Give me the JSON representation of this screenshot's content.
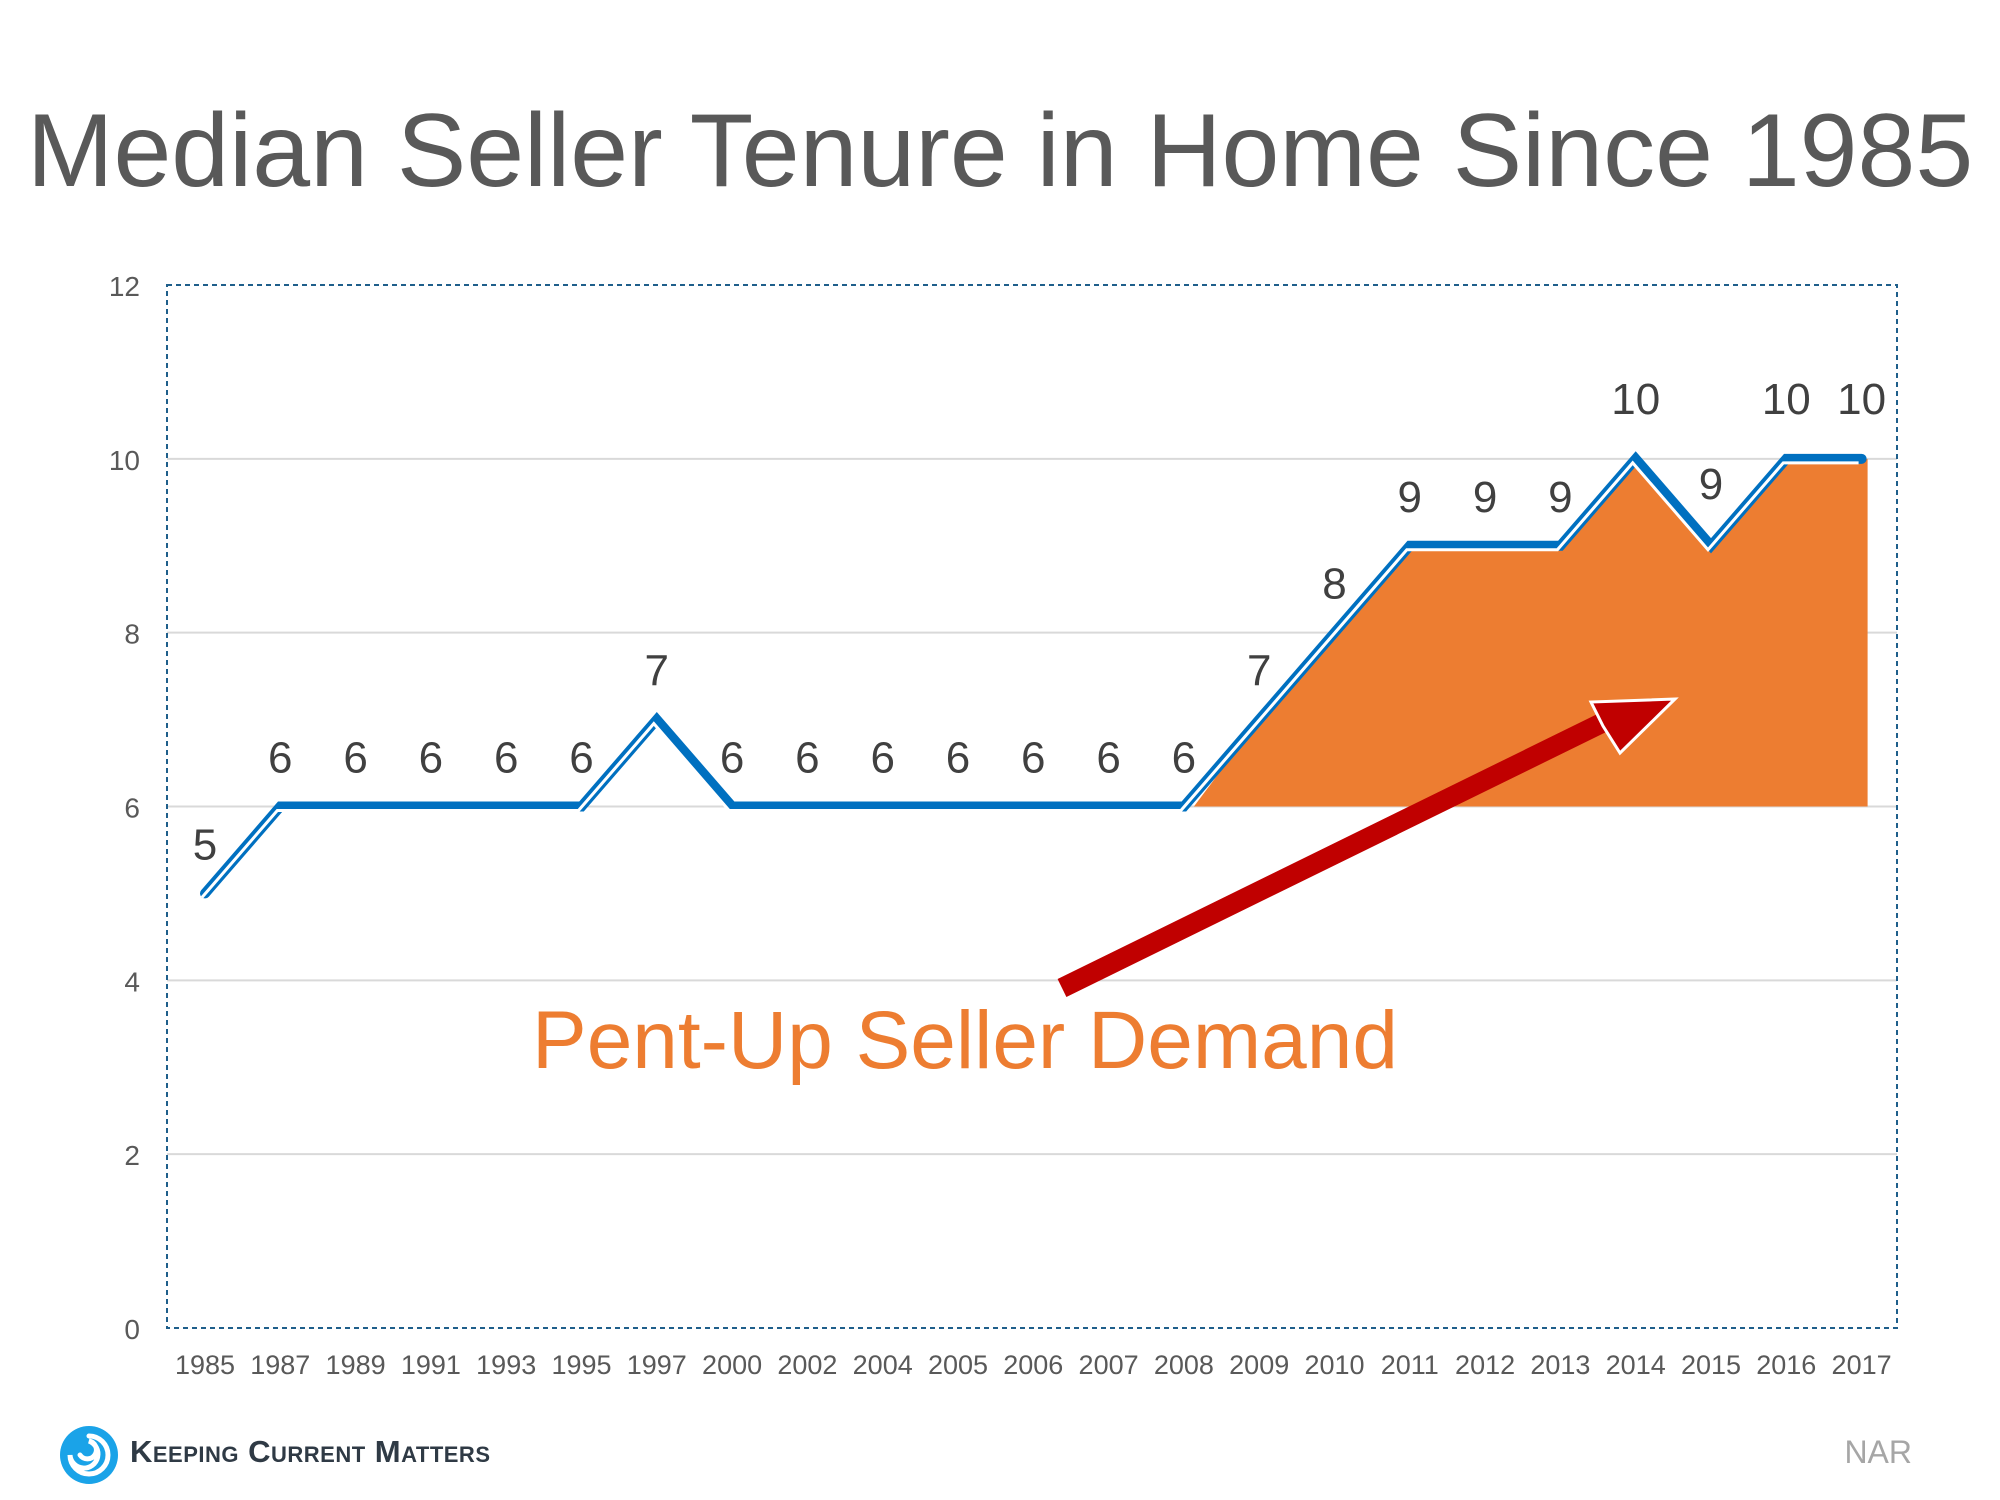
{
  "title": "Median Seller Tenure in Home Since 1985",
  "annotation": "Pent-Up Seller Demand",
  "source": "NAR",
  "brand": "Keeping Current Matters",
  "colors": {
    "line": "#0070c0",
    "shade": "#ed7d31",
    "arrow": "#c00000",
    "annotation": "#ed7d31",
    "title": "#595959"
  },
  "chart_data": {
    "type": "line",
    "title": "Median Seller Tenure in Home Since 1985",
    "xlabel": "",
    "ylabel": "",
    "ylim": [
      0,
      12
    ],
    "yticks": [
      0,
      2,
      4,
      6,
      8,
      10,
      12
    ],
    "grid": true,
    "categories": [
      "1985",
      "1987",
      "1989",
      "1991",
      "1993",
      "1995",
      "1997",
      "2000",
      "2002",
      "2004",
      "2005",
      "2006",
      "2007",
      "2008",
      "2009",
      "2010",
      "2011",
      "2012",
      "2013",
      "2014",
      "2015",
      "2016",
      "2017"
    ],
    "series": [
      {
        "values": [
          5,
          6,
          6,
          6,
          6,
          6,
          7,
          6,
          6,
          6,
          6,
          6,
          6,
          6,
          7,
          8,
          9,
          9,
          9,
          10,
          9,
          10,
          10
        ],
        "data_labels": [
          "5",
          "6",
          "6",
          "6",
          "6",
          "6",
          "7",
          "6",
          "6",
          "6",
          "6",
          "6",
          "6",
          "6",
          "7",
          "8",
          "9",
          "9",
          "9",
          "10",
          "9",
          "10",
          "10"
        ]
      }
    ],
    "shaded_region": {
      "from_category": "2008",
      "to_category": "2017",
      "baseline": 6
    }
  }
}
